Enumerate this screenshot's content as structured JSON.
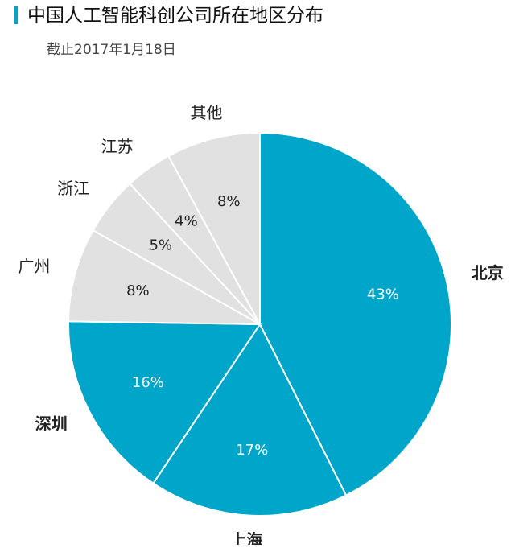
{
  "chart_data": {
    "type": "pie",
    "title": "中国人工智能科创公司所在地区分布",
    "subtitle": "截止2017年1月18日",
    "categories": [
      "北京",
      "上海",
      "深圳",
      "广州",
      "浙江",
      "江苏",
      "其他"
    ],
    "values": [
      43,
      17,
      16,
      8,
      5,
      4,
      8
    ],
    "value_labels": [
      "43%",
      "17%",
      "16%",
      "8%",
      "5%",
      "4%",
      "8%"
    ],
    "colors": [
      "#00a6c9",
      "#00a6c9",
      "#00a6c9",
      "#e1e1e1",
      "#e1e1e1",
      "#e1e1e1",
      "#e1e1e1"
    ]
  }
}
